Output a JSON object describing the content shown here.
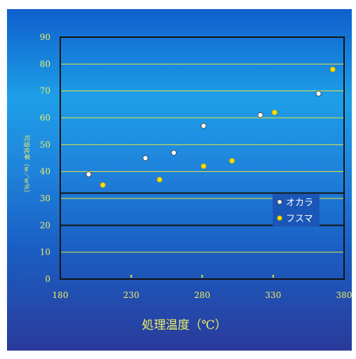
{
  "chart_data": {
    "type": "scatter",
    "xlabel": "処理温度（℃）",
    "ylabel": "可溶化率（w／w％）",
    "xlim": [
      180,
      380
    ],
    "ylim": [
      0,
      90
    ],
    "x_ticks": [
      "180",
      "230",
      "280",
      "330",
      "380"
    ],
    "y_ticks": [
      "0",
      "10",
      "20",
      "30",
      "40",
      "50",
      "60",
      "70",
      "80",
      "90"
    ],
    "grid": true,
    "legend": "right-middle",
    "series": [
      {
        "name": "オカラ",
        "color": "#ffffff",
        "points": [
          {
            "x": 200,
            "y": 39
          },
          {
            "x": 240,
            "y": 45
          },
          {
            "x": 260,
            "y": 47
          },
          {
            "x": 281,
            "y": 57
          },
          {
            "x": 321,
            "y": 61
          },
          {
            "x": 362,
            "y": 69
          }
        ]
      },
      {
        "name": "フスマ",
        "color": "#ffe000",
        "points": [
          {
            "x": 210,
            "y": 35
          },
          {
            "x": 250,
            "y": 37
          },
          {
            "x": 281,
            "y": 42
          },
          {
            "x": 301,
            "y": 44
          },
          {
            "x": 331,
            "y": 62
          },
          {
            "x": 372,
            "y": 78
          }
        ]
      }
    ]
  },
  "colors": {
    "gridline": "#e6e640",
    "axis": "#141414",
    "tick_label": "#f0f060",
    "legend_box": "#1a56b8",
    "legend_text": "#ffffff"
  }
}
